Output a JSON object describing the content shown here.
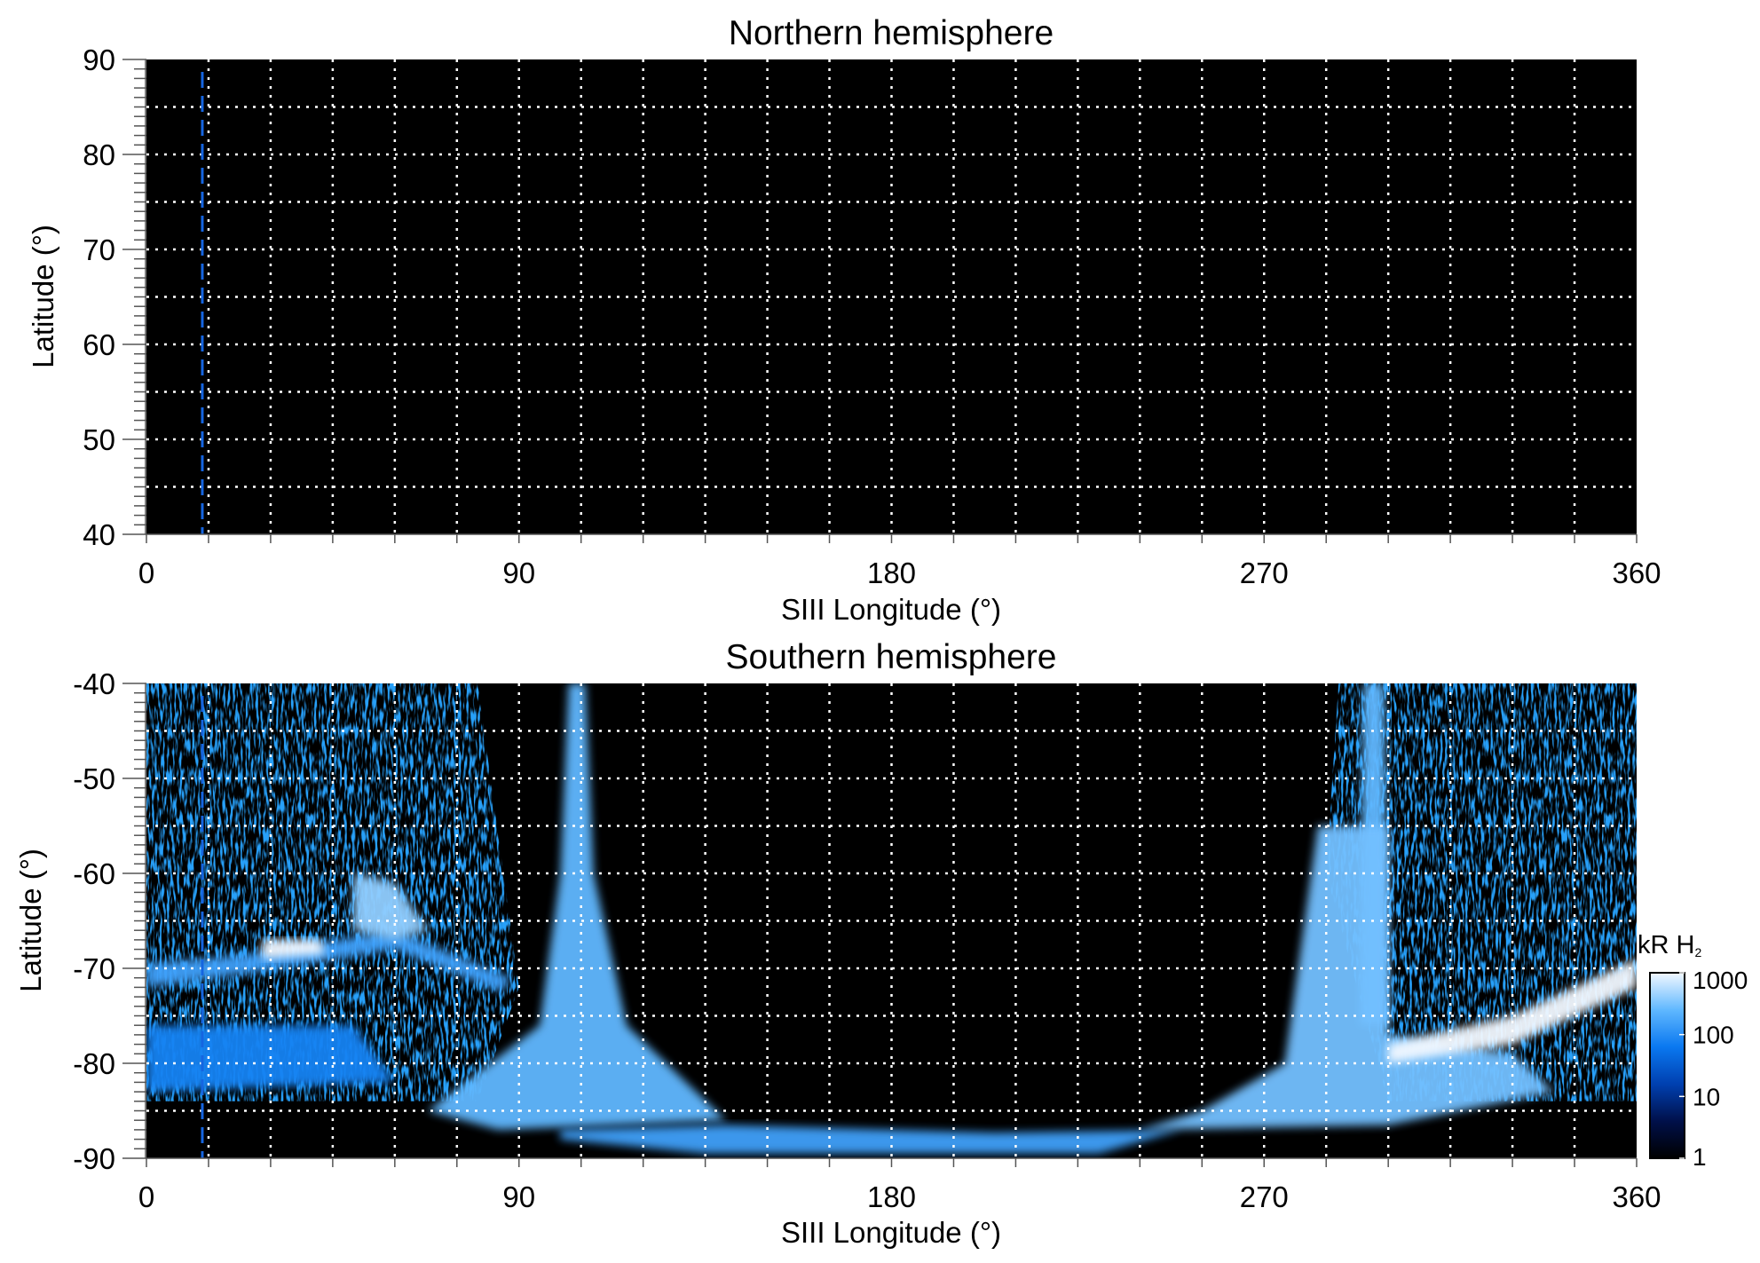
{
  "chart_data": [
    {
      "type": "heatmap",
      "title": "Northern hemisphere",
      "xlabel": "SIII Longitude (°)",
      "ylabel": "Latitude (°)",
      "xlim": [
        0,
        360
      ],
      "ylim": [
        40,
        90
      ],
      "xticks": [
        "0",
        "90",
        "180",
        "270",
        "360"
      ],
      "yticks": [
        "90",
        "80",
        "70",
        "60",
        "50",
        "40"
      ],
      "grid": "dotted, every 15° longitude and 5° latitude",
      "marker_line_lon": 13.5,
      "features": []
    },
    {
      "type": "heatmap",
      "title": "Southern hemisphere",
      "xlabel": "SIII Longitude (°)",
      "ylabel": "Latitude (°)",
      "xlim": [
        0,
        360
      ],
      "ylim": [
        -90,
        -40
      ],
      "xticks": [
        "0",
        "90",
        "180",
        "270",
        "360"
      ],
      "yticks": [
        "-40",
        "-50",
        "-60",
        "-70",
        "-80",
        "-90"
      ],
      "grid": "dotted, every 15° longitude and 5° latitude",
      "marker_line_lon": 13.5,
      "features": [
        {
          "name": "diffuse-left",
          "kR": 20,
          "speckle": true,
          "poly": [
            [
              0,
              -40
            ],
            [
              80,
              -40
            ],
            [
              90,
              -72
            ],
            [
              80,
              -84
            ],
            [
              0,
              -84
            ]
          ]
        },
        {
          "name": "diffuse-right",
          "kR": 20,
          "speckle": true,
          "poly": [
            [
              288,
              -40
            ],
            [
              360,
              -40
            ],
            [
              360,
              -84
            ],
            [
              300,
              -84
            ],
            [
              285,
              -60
            ]
          ]
        },
        {
          "name": "main-oval-left",
          "kR": 150,
          "poly": [
            [
              0,
              -69.5
            ],
            [
              25,
              -68.5
            ],
            [
              60,
              -66
            ],
            [
              88,
              -71
            ],
            [
              86,
              -72.5
            ],
            [
              60,
              -68
            ],
            [
              25,
              -70.5
            ],
            [
              0,
              -72
            ]
          ]
        },
        {
          "name": "bright-spot",
          "kR": 1000,
          "poly": [
            [
              28,
              -67
            ],
            [
              42,
              -67
            ],
            [
              43,
              -68.5
            ],
            [
              28,
              -69
            ]
          ]
        },
        {
          "name": "blob-60",
          "kR": 400,
          "poly": [
            [
              50,
              -60
            ],
            [
              60,
              -61
            ],
            [
              68,
              -66
            ],
            [
              60,
              -67
            ],
            [
              50,
              -66
            ]
          ]
        },
        {
          "name": "left-lower-patch",
          "kR": 80,
          "poly": [
            [
              0,
              -76
            ],
            [
              50,
              -76
            ],
            [
              60,
              -82
            ],
            [
              0,
              -83
            ]
          ]
        },
        {
          "name": "tongue-100",
          "kR": 250,
          "poly": [
            [
              102,
              -40
            ],
            [
              106,
              -40
            ],
            [
              108,
              -60
            ],
            [
              116,
              -76
            ],
            [
              140,
              -86
            ],
            [
              85,
              -87
            ],
            [
              68,
              -85
            ],
            [
              95,
              -76
            ],
            [
              100,
              -60
            ]
          ]
        },
        {
          "name": "polar-spokes",
          "kR": 150,
          "poly": [
            [
              100,
              -87
            ],
            [
              140,
              -86.5
            ],
            [
              205,
              -87.3
            ],
            [
              250,
              -87
            ],
            [
              230,
              -89.5
            ],
            [
              135,
              -89.5
            ],
            [
              100,
              -88
            ]
          ]
        },
        {
          "name": "column-297",
          "kR": 250,
          "poly": [
            [
              294,
              -40
            ],
            [
              299,
              -40
            ],
            [
              300,
              -76
            ],
            [
              293,
              -76
            ]
          ]
        },
        {
          "name": "fan-right",
          "kR": 300,
          "poly": [
            [
              283,
              -55
            ],
            [
              300,
              -55
            ],
            [
              300,
              -77
            ],
            [
              330,
              -79
            ],
            [
              340,
              -83
            ],
            [
              300,
              -86.5
            ],
            [
              240,
              -87
            ],
            [
              255,
              -85
            ],
            [
              275,
              -80
            ]
          ]
        },
        {
          "name": "main-oval-right",
          "kR": 1000,
          "poly": [
            [
              300,
              -78
            ],
            [
              330,
              -75
            ],
            [
              360,
              -69
            ],
            [
              360,
              -72
            ],
            [
              330,
              -78
            ],
            [
              300,
              -80
            ]
          ]
        }
      ]
    }
  ],
  "colorbar": {
    "label": "kR H",
    "label_sub": "2",
    "scale": "log",
    "range": [
      1,
      1000
    ],
    "ticks": [
      "1000",
      "100",
      "10",
      "1"
    ],
    "colors": [
      "#000000",
      "#00104a",
      "#0040b0",
      "#0a78f0",
      "#60b8ff",
      "#f2f8ff"
    ]
  }
}
